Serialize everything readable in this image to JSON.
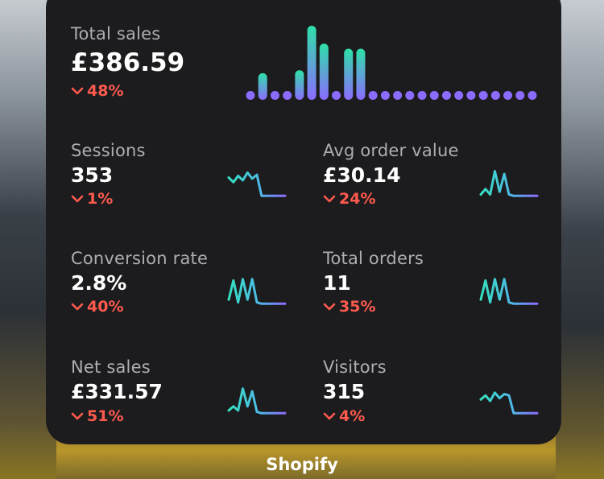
{
  "app_name": "Shopify",
  "colors": {
    "accent_top": "#2ee0a8",
    "accent_bottom": "#8b6cff",
    "negative": "#ff5a4e",
    "card": "#1c1c1e"
  },
  "total_sales": {
    "label": "Total sales",
    "value": "£386.59",
    "change": "48%"
  },
  "metrics": {
    "sessions": {
      "label": "Sessions",
      "value": "353",
      "change": "1%"
    },
    "avg_order_value": {
      "label": "Avg order value",
      "value": "£30.14",
      "change": "24%"
    },
    "conversion_rate": {
      "label": "Conversion rate",
      "value": "2.8%",
      "change": "40%"
    },
    "total_orders": {
      "label": "Total orders",
      "value": "11",
      "change": "35%"
    },
    "net_sales": {
      "label": "Net sales",
      "value": "£331.57",
      "change": "51%"
    },
    "visitors": {
      "label": "Visitors",
      "value": "315",
      "change": "4%"
    }
  },
  "chart_data": {
    "type": "bar",
    "values": [
      0,
      0.36,
      0,
      0,
      0.4,
      1.0,
      0.76,
      0,
      0.69,
      0.69,
      0,
      0,
      0,
      0,
      0,
      0,
      0,
      0,
      0,
      0,
      0,
      0,
      0,
      0
    ]
  },
  "sparklines": {
    "sessions": [
      0.72,
      0.55,
      0.78,
      0.62,
      0.9,
      0.68,
      0.82,
      0.05,
      0.05,
      0.05,
      0.05,
      0.05,
      0.05
    ],
    "avg_order_value": [
      0.1,
      0.3,
      0.1,
      0.95,
      0.2,
      0.85,
      0.1,
      0.05,
      0.05,
      0.05,
      0.05,
      0.05,
      0.05
    ],
    "conversion_rate": [
      0.2,
      0.9,
      0.1,
      0.95,
      0.2,
      0.95,
      0.1,
      0.05,
      0.05,
      0.05,
      0.05,
      0.05,
      0.05
    ],
    "total_orders": [
      0.2,
      0.9,
      0.1,
      0.95,
      0.2,
      0.95,
      0.1,
      0.05,
      0.05,
      0.05,
      0.05,
      0.05,
      0.05
    ],
    "net_sales": [
      0.15,
      0.3,
      0.15,
      0.95,
      0.3,
      0.85,
      0.1,
      0.05,
      0.05,
      0.05,
      0.05,
      0.05,
      0.05
    ],
    "visitors": [
      0.55,
      0.7,
      0.5,
      0.8,
      0.6,
      0.75,
      0.7,
      0.05,
      0.05,
      0.05,
      0.05,
      0.05,
      0.05
    ]
  }
}
